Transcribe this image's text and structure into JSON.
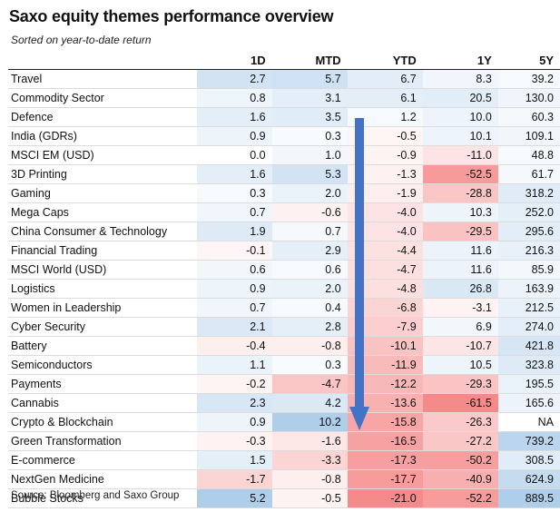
{
  "title": "Saxo equity themes performance overview",
  "subtitle": "Sorted on year-to-date return",
  "source": "Source: Bloomberg and Saxo Group",
  "colors": {
    "positive": "#5b9bd5",
    "negative": "#f04e4e",
    "arrow": "#4472c4"
  },
  "chart_data": {
    "type": "table",
    "title": "Saxo equity themes performance overview",
    "subtitle": "Sorted on year-to-date return",
    "columns": [
      "1D",
      "MTD",
      "YTD",
      "1Y",
      "5Y"
    ],
    "rows": [
      {
        "name": "Travel",
        "values": [
          "2.7",
          "5.7",
          "6.7",
          "8.3",
          "39.2"
        ]
      },
      {
        "name": "Commodity Sector",
        "values": [
          "0.8",
          "3.1",
          "6.1",
          "20.5",
          "130.0"
        ]
      },
      {
        "name": "Defence",
        "values": [
          "1.6",
          "3.5",
          "1.2",
          "10.0",
          "60.3"
        ]
      },
      {
        "name": "India (GDRs)",
        "values": [
          "0.9",
          "0.3",
          "-0.5",
          "10.1",
          "109.1"
        ]
      },
      {
        "name": "MSCI EM (USD)",
        "values": [
          "0.0",
          "1.0",
          "-0.9",
          "-11.0",
          "48.8"
        ]
      },
      {
        "name": "3D Printing",
        "values": [
          "1.6",
          "5.3",
          "-1.3",
          "-52.5",
          "61.7"
        ]
      },
      {
        "name": "Gaming",
        "values": [
          "0.3",
          "2.0",
          "-1.9",
          "-28.8",
          "318.2"
        ]
      },
      {
        "name": "Mega Caps",
        "values": [
          "0.7",
          "-0.6",
          "-4.0",
          "10.3",
          "252.0"
        ]
      },
      {
        "name": "China Consumer & Technology",
        "values": [
          "1.9",
          "0.7",
          "-4.0",
          "-29.5",
          "295.6"
        ]
      },
      {
        "name": "Financial Trading",
        "values": [
          "-0.1",
          "2.9",
          "-4.4",
          "11.6",
          "216.3"
        ]
      },
      {
        "name": "MSCI World (USD)",
        "values": [
          "0.6",
          "0.6",
          "-4.7",
          "11.6",
          "85.9"
        ]
      },
      {
        "name": "Logistics",
        "values": [
          "0.9",
          "2.0",
          "-4.8",
          "26.8",
          "163.9"
        ]
      },
      {
        "name": "Women in Leadership",
        "values": [
          "0.7",
          "0.4",
          "-6.8",
          "-3.1",
          "212.5"
        ]
      },
      {
        "name": "Cyber Security",
        "values": [
          "2.1",
          "2.8",
          "-7.9",
          "6.9",
          "274.0"
        ]
      },
      {
        "name": "Battery",
        "values": [
          "-0.4",
          "-0.8",
          "-10.1",
          "-10.7",
          "421.8"
        ]
      },
      {
        "name": "Semiconductors",
        "values": [
          "1.1",
          "0.3",
          "-11.9",
          "10.5",
          "323.8"
        ]
      },
      {
        "name": "Payments",
        "values": [
          "-0.2",
          "-4.7",
          "-12.2",
          "-29.3",
          "195.5"
        ]
      },
      {
        "name": "Cannabis",
        "values": [
          "2.3",
          "4.2",
          "-13.6",
          "-61.5",
          "165.6"
        ]
      },
      {
        "name": "Crypto & Blockchain",
        "values": [
          "0.9",
          "10.2",
          "-15.8",
          "-26.3",
          "NA"
        ]
      },
      {
        "name": "Green Transformation",
        "values": [
          "-0.3",
          "-1.6",
          "-16.5",
          "-27.2",
          "739.2"
        ]
      },
      {
        "name": "E-commerce",
        "values": [
          "1.5",
          "-3.3",
          "-17.3",
          "-50.2",
          "308.5"
        ]
      },
      {
        "name": "NextGen Medicine",
        "values": [
          "-1.7",
          "-0.8",
          "-17.7",
          "-40.9",
          "624.9"
        ]
      },
      {
        "name": "Bubble Stocks",
        "values": [
          "5.2",
          "-0.5",
          "-21.0",
          "-52.2",
          "889.5"
        ]
      }
    ]
  }
}
